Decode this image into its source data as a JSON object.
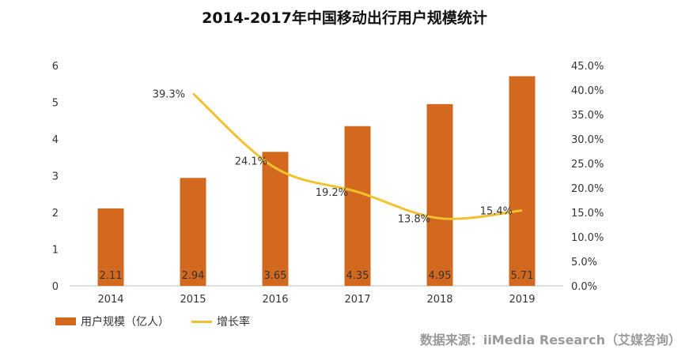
{
  "title": "2014-2017年中国移动出行用户规模统计",
  "source": "数据来源：iiMedia Research（艾媒咨询）",
  "chart_data": {
    "type": "bar",
    "title": "2014-2017年中国移动出行用户规模统计",
    "categories": [
      "2014",
      "2015",
      "2016",
      "2017",
      "2018",
      "2019"
    ],
    "series": [
      {
        "name": "用户规模（亿人）",
        "type": "bar",
        "axis": "left",
        "values": [
          2.11,
          2.94,
          3.65,
          4.35,
          4.95,
          5.71
        ],
        "labels": [
          "2.11",
          "2.94",
          "3.65",
          "4.35",
          "4.95",
          "5.71"
        ]
      },
      {
        "name": "增长率",
        "type": "line",
        "axis": "right",
        "values": [
          null,
          39.3,
          24.1,
          19.2,
          13.8,
          15.4
        ],
        "labels": [
          "",
          "39.3%",
          "24.1%",
          "19.2%",
          "13.8%",
          "15.4%"
        ]
      }
    ],
    "y_left": {
      "min": 0,
      "max": 6,
      "ticks": [
        "0",
        "1",
        "2",
        "3",
        "4",
        "5",
        "6"
      ]
    },
    "y_right": {
      "min": 0,
      "max": 45,
      "ticks": [
        "0.0%",
        "5.0%",
        "10.0%",
        "15.0%",
        "20.0%",
        "25.0%",
        "30.0%",
        "35.0%",
        "40.0%",
        "45.0%"
      ]
    },
    "legend_position": "bottom-left",
    "colors": {
      "bar": "#d2691e",
      "line": "#f2c12e",
      "axis": "#bfbfbf"
    }
  }
}
